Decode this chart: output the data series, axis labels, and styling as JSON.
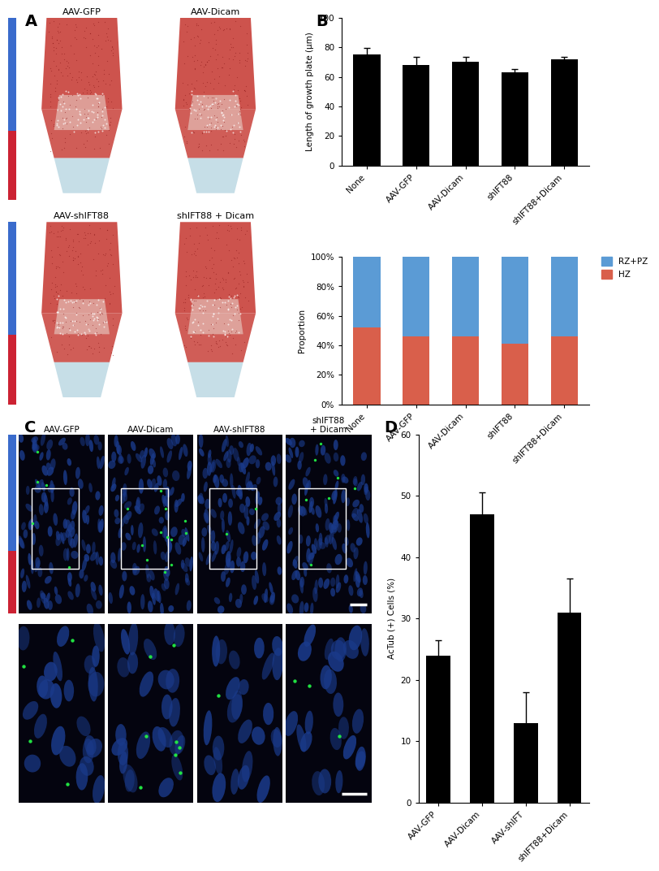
{
  "panel_labels": [
    "A",
    "B",
    "C",
    "D"
  ],
  "bar_chart_categories": [
    "None",
    "AAV-GFP",
    "AAV-Dicam",
    "shIFT88",
    "shIFT88+Dicam"
  ],
  "bar_chart_values": [
    75,
    68,
    70,
    63,
    72
  ],
  "bar_chart_errors": [
    4.5,
    5.5,
    3.5,
    2.5,
    1.5
  ],
  "bar_chart_ylabel": "Length of growth plate (μm)",
  "bar_chart_ylim": [
    0,
    100
  ],
  "bar_chart_yticks": [
    0,
    20,
    40,
    60,
    80,
    100
  ],
  "stacked_hz_values": [
    52,
    46,
    46,
    41,
    46
  ],
  "stacked_rz_values": [
    48,
    54,
    54,
    59,
    54
  ],
  "stacked_ylabel": "Proportion",
  "hz_color": "#d95f4b",
  "rzpz_color": "#5b9bd5",
  "actub_categories": [
    "AAV-GFP",
    "AAV-Dicam",
    "AAV-shIFT",
    "shIFT88+Dicam"
  ],
  "actub_values": [
    24,
    47,
    13,
    31
  ],
  "actub_errors": [
    2.5,
    3.5,
    5.0,
    5.5
  ],
  "actub_ylabel": "AcTub (+) Cells (%)",
  "actub_ylim": [
    0,
    60
  ],
  "actub_yticks": [
    0,
    10,
    20,
    30,
    40,
    50,
    60
  ],
  "bar_color_black": "#000000",
  "panel_a_labels": [
    "AAV-GFP",
    "AAV-Dicam",
    "AAV-shIFT88",
    "shIFT88 + Dicam"
  ],
  "panel_c_labels": [
    "AAV-GFP",
    "AAV-Dicam",
    "AAV-shIFT88",
    "shIFT88\n+ Dicam"
  ],
  "blue_bar_color": "#3a6bcc",
  "red_bar_color": "#cc2233",
  "tissue_red": "#c8403a",
  "tissue_blue": "#a0c8d8",
  "tissue_white": "#e8e4e0"
}
